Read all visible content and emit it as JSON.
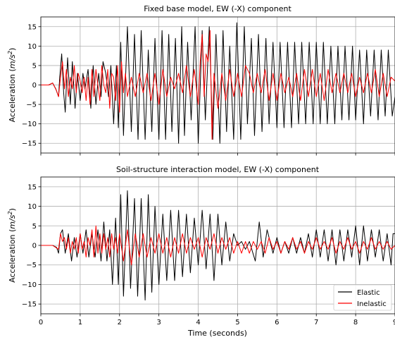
{
  "chart_data": [
    {
      "type": "line",
      "title": "Fixed base model, EW (-X) component",
      "xlabel": "",
      "ylabel": "Acceleration (m/s²)",
      "xlim": [
        0,
        9
      ],
      "ylim": [
        -17.5,
        17.5
      ],
      "xticks": [
        0,
        1,
        2,
        3,
        4,
        5,
        6,
        7,
        8,
        9
      ],
      "yticks": [
        -15,
        -10,
        -5,
        0,
        5,
        10,
        15
      ],
      "grid": true,
      "show_xtick_labels": false,
      "legend": null,
      "series": [
        {
          "name": "Elastic",
          "color": "#000000",
          "x": [
            0,
            0.2,
            0.3,
            0.38,
            0.45,
            0.48,
            0.53,
            0.58,
            0.62,
            0.68,
            0.75,
            0.8,
            0.87,
            0.93,
            1.0,
            1.07,
            1.12,
            1.2,
            1.27,
            1.33,
            1.4,
            1.47,
            1.53,
            1.58,
            1.65,
            1.72,
            1.78,
            1.85,
            1.92,
            1.97,
            2.03,
            2.1,
            2.2,
            2.3,
            2.38,
            2.47,
            2.55,
            2.65,
            2.73,
            2.82,
            2.9,
            3.0,
            3.08,
            3.17,
            3.25,
            3.33,
            3.42,
            3.5,
            3.58,
            3.65,
            3.73,
            3.82,
            3.92,
            4.0,
            4.1,
            4.18,
            4.28,
            4.37,
            4.45,
            4.55,
            4.63,
            4.72,
            4.8,
            4.9,
            4.98,
            5.08,
            5.17,
            5.25,
            5.35,
            5.43,
            5.53,
            5.62,
            5.72,
            5.8,
            5.9,
            6.0,
            6.08,
            6.18,
            6.27,
            6.37,
            6.45,
            6.55,
            6.63,
            6.73,
            6.82,
            6.92,
            7.0,
            7.1,
            7.18,
            7.28,
            7.37,
            7.47,
            7.55,
            7.65,
            7.73,
            7.83,
            7.92,
            8.0,
            8.1,
            8.2,
            8.28,
            8.38,
            8.47,
            8.57,
            8.65,
            8.75,
            8.83,
            8.93,
            9.0
          ],
          "y": [
            0,
            0,
            0.5,
            -1,
            -3,
            2,
            8,
            -2,
            -7,
            7,
            -5,
            6,
            -6,
            3,
            -4,
            3,
            -1,
            4,
            -6,
            5,
            -5,
            3,
            -3,
            6,
            3,
            -3,
            5,
            -10,
            5,
            -11,
            11,
            -13,
            15,
            -12,
            13,
            -14,
            14,
            -14,
            9,
            -12,
            12,
            -14,
            14,
            -14,
            13,
            -12,
            12,
            -15,
            15,
            -13,
            11,
            -9,
            15,
            -15,
            14,
            -9,
            15,
            -14,
            13,
            -15,
            14,
            -12,
            10,
            -14,
            16,
            -14,
            15,
            -10,
            12,
            -13,
            13,
            -12,
            12,
            -10,
            11,
            -11,
            11,
            -11,
            11,
            -11,
            11,
            -10,
            11,
            -10,
            11,
            -10,
            11,
            -10,
            11,
            -10,
            10,
            -10,
            10,
            -9,
            10,
            -9,
            10,
            -9,
            9,
            -10,
            9,
            -8,
            9,
            -9,
            9,
            -8,
            9,
            -8,
            -3
          ]
        },
        {
          "name": "Inelastic",
          "color": "#ff0000",
          "x": [
            0,
            0.2,
            0.3,
            0.4,
            0.45,
            0.5,
            0.55,
            0.6,
            0.65,
            0.7,
            0.75,
            0.8,
            0.85,
            0.9,
            0.95,
            1.0,
            1.05,
            1.1,
            1.15,
            1.2,
            1.25,
            1.3,
            1.35,
            1.4,
            1.45,
            1.5,
            1.55,
            1.6,
            1.65,
            1.7,
            1.75,
            1.8,
            1.85,
            1.9,
            1.95,
            2.0,
            2.05,
            2.1,
            2.15,
            2.2,
            2.3,
            2.4,
            2.5,
            2.6,
            2.7,
            2.8,
            2.9,
            3.0,
            3.1,
            3.2,
            3.3,
            3.4,
            3.5,
            3.6,
            3.7,
            3.8,
            3.9,
            4.0,
            4.05,
            4.1,
            4.15,
            4.2,
            4.25,
            4.3,
            4.35,
            4.4,
            4.5,
            4.6,
            4.7,
            4.8,
            4.9,
            5.0,
            5.1,
            5.2,
            5.3,
            5.4,
            5.5,
            5.6,
            5.7,
            5.8,
            5.9,
            6.0,
            6.1,
            6.2,
            6.3,
            6.4,
            6.5,
            6.6,
            6.7,
            6.8,
            6.9,
            7.0,
            7.1,
            7.2,
            7.3,
            7.4,
            7.5,
            7.6,
            7.7,
            7.8,
            7.9,
            8.0,
            8.1,
            8.2,
            8.3,
            8.4,
            8.5,
            8.6,
            8.7,
            8.8,
            8.9,
            9.0
          ],
          "y": [
            0,
            0,
            0.5,
            -1.5,
            -3,
            2,
            6,
            -1,
            4,
            -3,
            2,
            -1,
            5,
            -2,
            3,
            1,
            -2,
            2,
            -4,
            2,
            -5,
            4,
            -3,
            4,
            0,
            -4,
            5,
            0,
            -2,
            4,
            -6,
            3,
            2,
            -4,
            5,
            -7,
            6,
            -2,
            3,
            -3,
            2,
            -3,
            3,
            -2,
            3,
            -4,
            3,
            -5,
            4,
            -3,
            2,
            -1,
            3,
            -2,
            5,
            -3,
            4,
            -5,
            6,
            13,
            -3,
            8,
            6,
            14,
            -14,
            3,
            -6,
            3,
            -4,
            4,
            -3,
            3,
            -3,
            5,
            3,
            -2,
            3,
            -2,
            4,
            -4,
            3,
            -4,
            3,
            -2,
            2,
            -3,
            3,
            -4,
            4,
            -3,
            4,
            -3,
            3,
            -4,
            4,
            -2,
            3,
            -2,
            3,
            -2,
            3,
            -3,
            2,
            -2,
            3,
            -2,
            4,
            -3,
            3,
            -3,
            2,
            1
          ]
        }
      ]
    },
    {
      "type": "line",
      "title": "Soil-structure interaction model, EW (-X) component",
      "xlabel": "Time (seconds)",
      "ylabel": "Acceleration (m/s²)",
      "xlim": [
        0,
        9
      ],
      "ylim": [
        -17.5,
        17.5
      ],
      "xticks": [
        0,
        1,
        2,
        3,
        4,
        5,
        6,
        7,
        8,
        9
      ],
      "yticks": [
        -15,
        -10,
        -5,
        0,
        5,
        10,
        15
      ],
      "grid": true,
      "show_xtick_labels": true,
      "legend": "lower-right",
      "series": [
        {
          "name": "Elastic",
          "color": "#000000",
          "x": [
            0,
            0.3,
            0.4,
            0.45,
            0.5,
            0.55,
            0.62,
            0.7,
            0.78,
            0.85,
            0.92,
            1.0,
            1.07,
            1.15,
            1.22,
            1.3,
            1.38,
            1.45,
            1.53,
            1.6,
            1.68,
            1.75,
            1.82,
            1.9,
            1.97,
            2.03,
            2.1,
            2.2,
            2.28,
            2.38,
            2.46,
            2.55,
            2.65,
            2.73,
            2.82,
            2.9,
            3.0,
            3.1,
            3.2,
            3.3,
            3.4,
            3.5,
            3.6,
            3.7,
            3.8,
            3.9,
            4.0,
            4.1,
            4.2,
            4.3,
            4.4,
            4.5,
            4.6,
            4.7,
            4.8,
            4.9,
            5.0,
            5.1,
            5.2,
            5.3,
            5.45,
            5.55,
            5.65,
            5.75,
            5.9,
            6.0,
            6.1,
            6.2,
            6.3,
            6.4,
            6.5,
            6.6,
            6.7,
            6.8,
            6.9,
            7.0,
            7.1,
            7.2,
            7.3,
            7.4,
            7.5,
            7.6,
            7.7,
            7.8,
            7.9,
            8.0,
            8.1,
            8.2,
            8.3,
            8.4,
            8.5,
            8.6,
            8.7,
            8.8,
            8.9,
            8.95,
            9.0
          ],
          "y": [
            0,
            0,
            -0.5,
            -2,
            3,
            4,
            -2,
            3,
            -4,
            2,
            -3,
            3,
            -2,
            4,
            -3,
            3,
            -3,
            4,
            -4,
            6,
            -4,
            4,
            -10,
            7,
            -10,
            13,
            -13,
            14,
            -11,
            12,
            -13,
            12,
            -14,
            13,
            -12,
            10,
            -10,
            8,
            -9,
            9,
            -9,
            9,
            -8,
            8,
            -7,
            7,
            -5,
            9,
            -6,
            8,
            -9,
            8,
            -5,
            6,
            -4,
            3,
            0,
            1,
            -1,
            1,
            -4,
            6,
            -3,
            4,
            -2,
            2,
            -2,
            1,
            -2,
            2,
            -2,
            2,
            -2,
            3,
            -3,
            4,
            -3,
            4,
            -4,
            4,
            -5,
            4,
            -4,
            4,
            -3,
            5,
            -5,
            5,
            -4,
            4,
            -3,
            4,
            -4,
            3,
            -5,
            3,
            3
          ]
        },
        {
          "name": "Inelastic",
          "color": "#ff0000",
          "x": [
            0,
            0.3,
            0.45,
            0.5,
            0.55,
            0.6,
            0.65,
            0.7,
            0.75,
            0.8,
            0.85,
            0.9,
            0.95,
            1.0,
            1.05,
            1.1,
            1.15,
            1.2,
            1.25,
            1.3,
            1.35,
            1.4,
            1.45,
            1.5,
            1.55,
            1.6,
            1.65,
            1.7,
            1.75,
            1.8,
            1.85,
            1.9,
            1.95,
            2.0,
            2.1,
            2.2,
            2.3,
            2.4,
            2.5,
            2.6,
            2.7,
            2.8,
            2.9,
            3.0,
            3.1,
            3.2,
            3.3,
            3.4,
            3.5,
            3.6,
            3.7,
            3.8,
            3.9,
            4.0,
            4.1,
            4.2,
            4.3,
            4.4,
            4.5,
            4.6,
            4.7,
            4.8,
            4.9,
            5.0,
            5.1,
            5.2,
            5.3,
            5.4,
            5.5,
            5.6,
            5.7,
            5.8,
            5.9,
            6.0,
            6.1,
            6.2,
            6.3,
            6.4,
            6.5,
            6.6,
            6.7,
            6.8,
            6.9,
            7.0,
            7.1,
            7.2,
            7.3,
            7.4,
            7.5,
            7.6,
            7.7,
            7.8,
            7.9,
            8.0,
            8.1,
            8.2,
            8.3,
            8.4,
            8.5,
            8.6,
            8.7,
            8.8,
            8.9,
            9.0
          ],
          "y": [
            0,
            0,
            -1,
            3,
            1,
            2,
            -1,
            2,
            -2,
            1,
            -1,
            2,
            -2,
            3,
            -1,
            1,
            -3,
            2,
            0,
            4,
            -3,
            5,
            -2,
            3,
            -2,
            3,
            -1,
            2,
            -3,
            3,
            -1,
            2,
            -2,
            3,
            -4,
            4,
            -5,
            3,
            -3,
            3,
            -3,
            2,
            -2,
            3,
            -2,
            2,
            -3,
            2,
            -2,
            3,
            -2,
            2,
            -1,
            2,
            -3,
            2,
            -1,
            3,
            -2,
            2,
            -1,
            2,
            -2,
            1,
            -2,
            1,
            -2,
            1,
            -1,
            1,
            -2,
            2,
            -1,
            1,
            -2,
            1,
            -1,
            2,
            -1,
            1,
            -2,
            1,
            -1,
            2,
            -1,
            1,
            -1,
            2,
            -2,
            1,
            -1,
            2,
            -1,
            1,
            -2,
            1,
            -1,
            2,
            -1,
            1,
            -1,
            1,
            -1,
            0
          ]
        }
      ]
    }
  ]
}
